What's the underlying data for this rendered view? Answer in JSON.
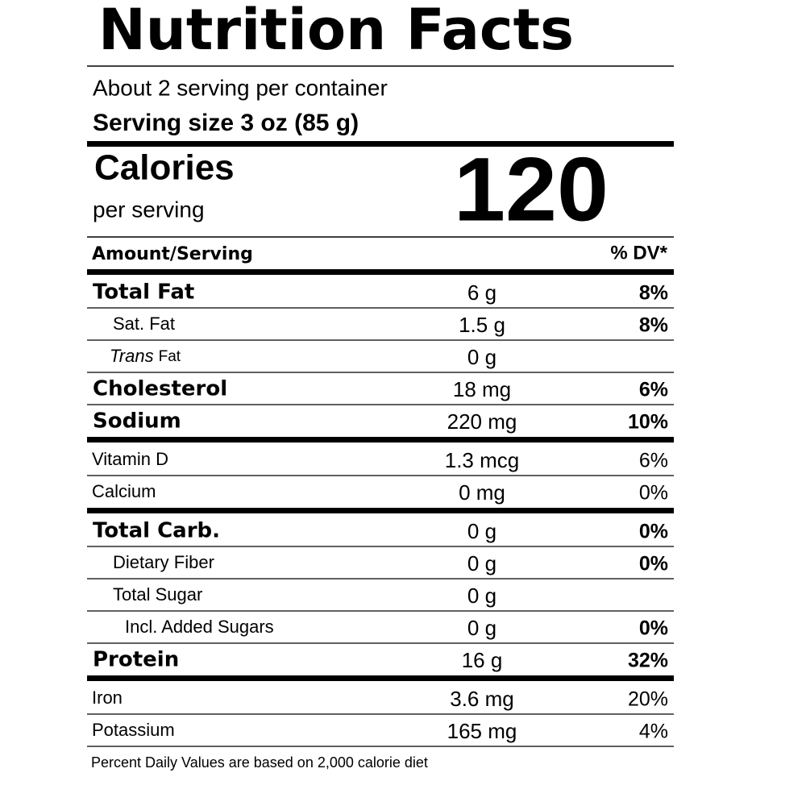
{
  "header": {
    "title": "Nutrition Facts",
    "servings": "About 2 serving per container",
    "serving_size": "Serving size 3 oz (85 g)"
  },
  "calories": {
    "label": "Calories",
    "sub": "per serving",
    "value": "120"
  },
  "columns": {
    "amount": "Amount/Serving",
    "dv": "% DV*"
  },
  "sections": [
    {
      "rows": [
        {
          "name": "Total Fat",
          "amount": "6 g",
          "dv": "8%",
          "style": "main"
        },
        {
          "name": "Sat. Fat",
          "amount": "1.5 g",
          "dv": "8%",
          "style": "sub"
        },
        {
          "name_italic": "Trans",
          "name": "Fat",
          "amount": "0 g",
          "style": "sub"
        },
        {
          "name": "Cholesterol",
          "amount": "18 mg",
          "dv": "6%",
          "style": "main"
        },
        {
          "name": "Sodium",
          "amount": "220 mg",
          "dv": "10%",
          "style": "main"
        }
      ]
    },
    {
      "rows": [
        {
          "name": "Vitamin D",
          "amount": "1.3 mcg",
          "dv": "6%",
          "style": "plain"
        },
        {
          "name": "Calcium",
          "amount": "0 mg",
          "dv": "0%",
          "style": "plain"
        }
      ]
    },
    {
      "rows": [
        {
          "name": "Total Carb.",
          "amount": "0 g",
          "dv": "0%",
          "style": "main"
        },
        {
          "name": "Dietary Fiber",
          "amount": "0 g",
          "dv": "0%",
          "style": "sub"
        },
        {
          "name": "Total Sugar",
          "amount": "0 g",
          "style": "sub"
        },
        {
          "name": "Incl. Added Sugars",
          "amount": "0 g",
          "dv": "0%",
          "style": "subsub"
        },
        {
          "name": "Protein",
          "amount": "16 g",
          "dv": "32%",
          "style": "main"
        }
      ]
    },
    {
      "rows": [
        {
          "name": "Iron",
          "amount": "3.6 mg",
          "dv": "20%",
          "style": "plain"
        },
        {
          "name": "Potassium",
          "amount": "165 mg",
          "dv": "4%",
          "style": "plain"
        }
      ]
    }
  ],
  "footnote": "Percent Daily Values are based on 2,000 calorie diet"
}
